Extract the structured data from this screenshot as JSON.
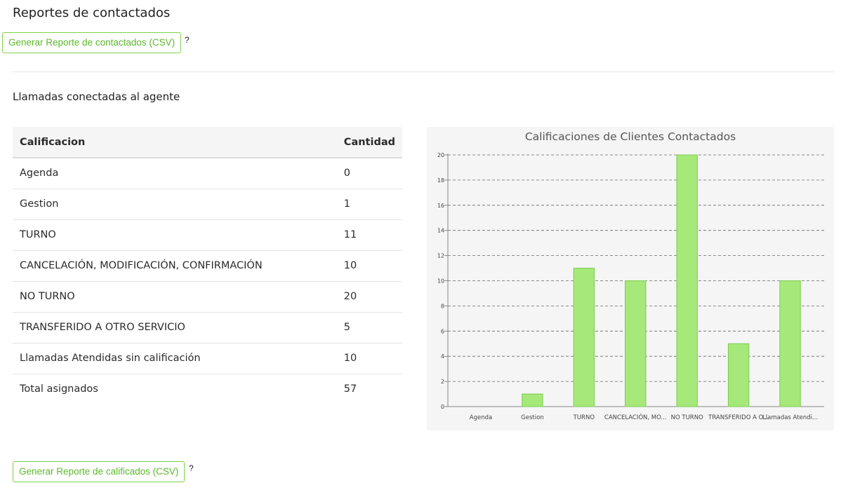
{
  "header": {
    "title": "Reportes de contactados",
    "csv_contactados_label": "Generar Reporte de contactados (CSV)",
    "help_mark": "?"
  },
  "section": {
    "title": "Llamadas conectadas al agente"
  },
  "table": {
    "columns": [
      "Calificacion",
      "Cantidad"
    ],
    "rows": [
      {
        "calificacion": "Agenda",
        "cantidad": "0"
      },
      {
        "calificacion": "Gestion",
        "cantidad": "1"
      },
      {
        "calificacion": "TURNO",
        "cantidad": "11"
      },
      {
        "calificacion": "CANCELACIÓN, MODIFICACIÓN, CONFIRMACIÓN",
        "cantidad": "10"
      },
      {
        "calificacion": "NO TURNO",
        "cantidad": "20"
      },
      {
        "calificacion": "TRANSFERIDO A OTRO SERVICIO",
        "cantidad": "5"
      },
      {
        "calificacion": "Llamadas Atendidas sin calificación",
        "cantidad": "10"
      },
      {
        "calificacion": "Total asignados",
        "cantidad": "57"
      }
    ]
  },
  "chart_data": {
    "type": "bar",
    "title": "Calificaciones de Clientes Contactados",
    "categories": [
      "Agenda",
      "Gestion",
      "TURNO",
      "CANCELACIÓN, MO...",
      "NO TURNO",
      "TRANSFERIDO A O...",
      "Llamadas Atendi..."
    ],
    "values": [
      0,
      1,
      11,
      10,
      20,
      5,
      10
    ],
    "ylim": [
      0,
      20
    ],
    "yticks": [
      0,
      2,
      4,
      6,
      8,
      10,
      12,
      14,
      16,
      18,
      20
    ],
    "grid": "horizontal dashed",
    "bar_color": "#a6e87a",
    "bar_border": "#7ccd4e",
    "background": "#f5f5f5"
  },
  "footer": {
    "csv_calificados_label": "Generar Reporte de calificados (CSV)",
    "help_mark": "?"
  },
  "colors": {
    "accent_green": "#5cb82a",
    "button_border": "#7fd04a"
  }
}
